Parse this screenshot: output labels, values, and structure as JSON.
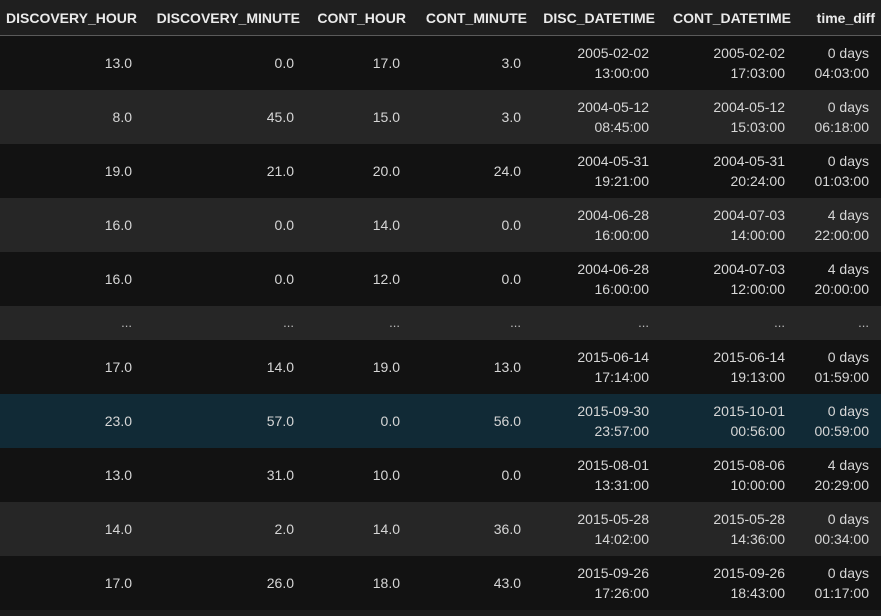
{
  "columns": [
    "DISCOVERY_HOUR",
    "DISCOVERY_MINUTE",
    "CONT_HOUR",
    "CONT_MINUTE",
    "DISC_DATETIME",
    "CONT_DATETIME",
    "time_diff"
  ],
  "rows": [
    {
      "discovery_hour": "13.0",
      "discovery_minute": "0.0",
      "cont_hour": "17.0",
      "cont_minute": "3.0",
      "disc_date": "2005-02-02",
      "disc_time": "13:00:00",
      "cont_date": "2005-02-02",
      "cont_time": "17:03:00",
      "diff_days": "0 days",
      "diff_time": "04:03:00"
    },
    {
      "discovery_hour": "8.0",
      "discovery_minute": "45.0",
      "cont_hour": "15.0",
      "cont_minute": "3.0",
      "disc_date": "2004-05-12",
      "disc_time": "08:45:00",
      "cont_date": "2004-05-12",
      "cont_time": "15:03:00",
      "diff_days": "0 days",
      "diff_time": "06:18:00"
    },
    {
      "discovery_hour": "19.0",
      "discovery_minute": "21.0",
      "cont_hour": "20.0",
      "cont_minute": "24.0",
      "disc_date": "2004-05-31",
      "disc_time": "19:21:00",
      "cont_date": "2004-05-31",
      "cont_time": "20:24:00",
      "diff_days": "0 days",
      "diff_time": "01:03:00"
    },
    {
      "discovery_hour": "16.0",
      "discovery_minute": "0.0",
      "cont_hour": "14.0",
      "cont_minute": "0.0",
      "disc_date": "2004-06-28",
      "disc_time": "16:00:00",
      "cont_date": "2004-07-03",
      "cont_time": "14:00:00",
      "diff_days": "4 days",
      "diff_time": "22:00:00"
    },
    {
      "discovery_hour": "16.0",
      "discovery_minute": "0.0",
      "cont_hour": "12.0",
      "cont_minute": "0.0",
      "disc_date": "2004-06-28",
      "disc_time": "16:00:00",
      "cont_date": "2004-07-03",
      "cont_time": "12:00:00",
      "diff_days": "4 days",
      "diff_time": "20:00:00"
    },
    {
      "ellipsis": "..."
    },
    {
      "discovery_hour": "17.0",
      "discovery_minute": "14.0",
      "cont_hour": "19.0",
      "cont_minute": "13.0",
      "disc_date": "2015-06-14",
      "disc_time": "17:14:00",
      "cont_date": "2015-06-14",
      "cont_time": "19:13:00",
      "diff_days": "0 days",
      "diff_time": "01:59:00"
    },
    {
      "discovery_hour": "23.0",
      "discovery_minute": "57.0",
      "cont_hour": "0.0",
      "cont_minute": "56.0",
      "disc_date": "2015-09-30",
      "disc_time": "23:57:00",
      "cont_date": "2015-10-01",
      "cont_time": "00:56:00",
      "diff_days": "0 days",
      "diff_time": "00:59:00"
    },
    {
      "discovery_hour": "13.0",
      "discovery_minute": "31.0",
      "cont_hour": "10.0",
      "cont_minute": "0.0",
      "disc_date": "2015-08-01",
      "disc_time": "13:31:00",
      "cont_date": "2015-08-06",
      "cont_time": "10:00:00",
      "diff_days": "4 days",
      "diff_time": "20:29:00"
    },
    {
      "discovery_hour": "14.0",
      "discovery_minute": "2.0",
      "cont_hour": "14.0",
      "cont_minute": "36.0",
      "disc_date": "2015-05-28",
      "disc_time": "14:02:00",
      "cont_date": "2015-05-28",
      "cont_time": "14:36:00",
      "diff_days": "0 days",
      "diff_time": "00:34:00"
    },
    {
      "discovery_hour": "17.0",
      "discovery_minute": "26.0",
      "cont_hour": "18.0",
      "cont_minute": "43.0",
      "disc_date": "2015-09-26",
      "disc_time": "17:26:00",
      "cont_date": "2015-09-26",
      "cont_time": "18:43:00",
      "diff_days": "0 days",
      "diff_time": "01:17:00"
    }
  ],
  "colors": {
    "background": "#1f1f1f",
    "row_dark": "#121212",
    "row_light": "#262626",
    "row_highlight": "#112a36",
    "text": "#d6d6d6",
    "header_border": "#5a5a5a"
  }
}
